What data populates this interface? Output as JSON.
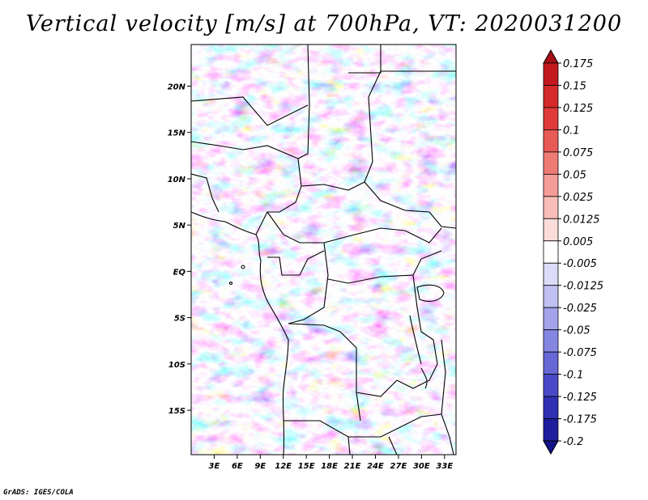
{
  "title": "Vertical velocity [m/s] at 700hPa, VT: 2020031200",
  "credit": "GrADS: IGES/COLA",
  "map": {
    "lat_ticks": [
      "20N",
      "15N",
      "10N",
      "5N",
      "EQ",
      "5S",
      "10S",
      "15S"
    ],
    "lat_values": [
      20,
      15,
      10,
      5,
      0,
      -5,
      -10,
      -15
    ],
    "lon_ticks": [
      "3E",
      "6E",
      "9E",
      "12E",
      "15E",
      "18E",
      "21E",
      "24E",
      "27E",
      "30E",
      "33E"
    ],
    "lon_values": [
      3,
      6,
      9,
      12,
      15,
      18,
      21,
      24,
      27,
      30,
      33
    ],
    "lon_range": [
      0,
      34.5
    ],
    "lat_range": [
      -19.8,
      24.5
    ]
  },
  "colorbar": {
    "labels": [
      "0.175",
      "0.15",
      "0.125",
      "0.1",
      "0.075",
      "0.05",
      "0.025",
      "0.0125",
      "0.005",
      "-0.005",
      "-0.0125",
      "-0.025",
      "-0.05",
      "-0.075",
      "-0.1",
      "-0.125",
      "-0.175",
      "-0.2"
    ],
    "colors": [
      "#a50f15",
      "#c2191f",
      "#d42a2a",
      "#e03a3a",
      "#e85a55",
      "#ef7b74",
      "#f49c96",
      "#f8bdb8",
      "#fbdcd9",
      "#ffffff",
      "#dcdcf8",
      "#c0c0f2",
      "#a3a3ec",
      "#8585e2",
      "#6767d6",
      "#4a4ac8",
      "#3030b4",
      "#1e1e9c",
      "#12128a"
    ]
  }
}
